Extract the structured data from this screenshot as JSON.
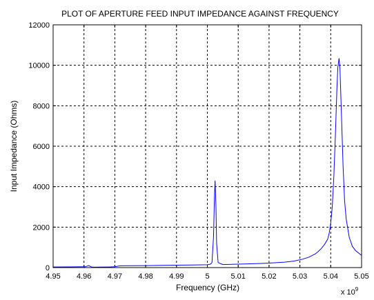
{
  "chart_data": {
    "type": "line",
    "title": "PLOT OF APERTURE FEED INPUT IMPEDANCE AGAINST FREQUENCY",
    "xlabel": "Frequency (GHz)",
    "ylabel": "Input Impedance (Ohms)",
    "x_multiplier_label": "x 10",
    "x_multiplier_exponent": "9",
    "xlim": [
      4.95,
      5.05
    ],
    "ylim": [
      0,
      12000
    ],
    "x_ticks": [
      4.95,
      4.96,
      4.97,
      4.98,
      4.99,
      5.0,
      5.01,
      5.02,
      5.03,
      5.04,
      5.05
    ],
    "x_tick_labels": [
      "4.95",
      "4.96",
      "4.97",
      "4.98",
      "4.99",
      "5",
      "5.01",
      "5.02",
      "5.03",
      "5.04",
      "5.05"
    ],
    "y_ticks": [
      0,
      2000,
      4000,
      6000,
      8000,
      10000,
      12000
    ],
    "y_tick_labels": [
      "0",
      "2000",
      "4000",
      "6000",
      "8000",
      "10000",
      "12000"
    ],
    "grid": true,
    "line_color": "#0000ff",
    "series": [
      {
        "x": [
          4.95,
          4.955,
          4.9605,
          4.9615,
          4.962,
          4.9625,
          4.9635,
          4.965,
          4.968,
          4.97,
          4.971,
          4.972,
          4.975,
          4.98,
          4.985,
          4.99,
          4.995,
          5.0,
          5.001,
          5.0015,
          5.002,
          5.0023,
          5.0025,
          5.0028,
          5.003,
          5.0035,
          5.005,
          5.01,
          5.015,
          5.02,
          5.025,
          5.028,
          5.031,
          5.033,
          5.035,
          5.036,
          5.037,
          5.038,
          5.039,
          5.0395,
          5.04,
          5.0405,
          5.041,
          5.0415,
          5.042,
          5.0423,
          5.0427,
          5.043,
          5.0435,
          5.044,
          5.0445,
          5.045,
          5.046,
          5.047,
          5.048,
          5.05
        ],
        "y": [
          30,
          35,
          40,
          100,
          60,
          30,
          20,
          25,
          30,
          40,
          70,
          90,
          95,
          100,
          110,
          120,
          125,
          140,
          170,
          250,
          1500,
          3500,
          4300,
          3000,
          1200,
          250,
          150,
          170,
          190,
          220,
          270,
          320,
          420,
          520,
          680,
          800,
          950,
          1150,
          1400,
          1700,
          2200,
          3000,
          4500,
          6500,
          8800,
          9900,
          10350,
          9800,
          7500,
          5000,
          3300,
          2400,
          1500,
          1050,
          850,
          600
        ]
      }
    ]
  }
}
